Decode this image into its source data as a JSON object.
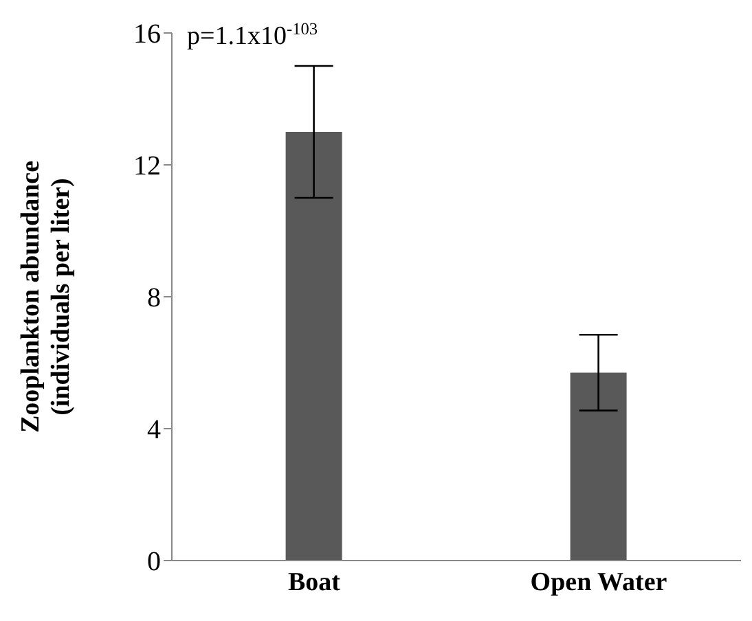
{
  "chart_data": {
    "type": "bar",
    "categories": [
      "Boat",
      "Open Water"
    ],
    "values": [
      13,
      5.7
    ],
    "errors": [
      2,
      1.15
    ],
    "color": "#595959",
    "ylabel": "Zooplankton abundance\n(individuals per liter)",
    "ylim": [
      0,
      16
    ],
    "yticks": [
      0,
      4,
      8,
      12,
      16
    ],
    "annotations": [
      "p=1.1x10$^{-103}$"
    ]
  }
}
